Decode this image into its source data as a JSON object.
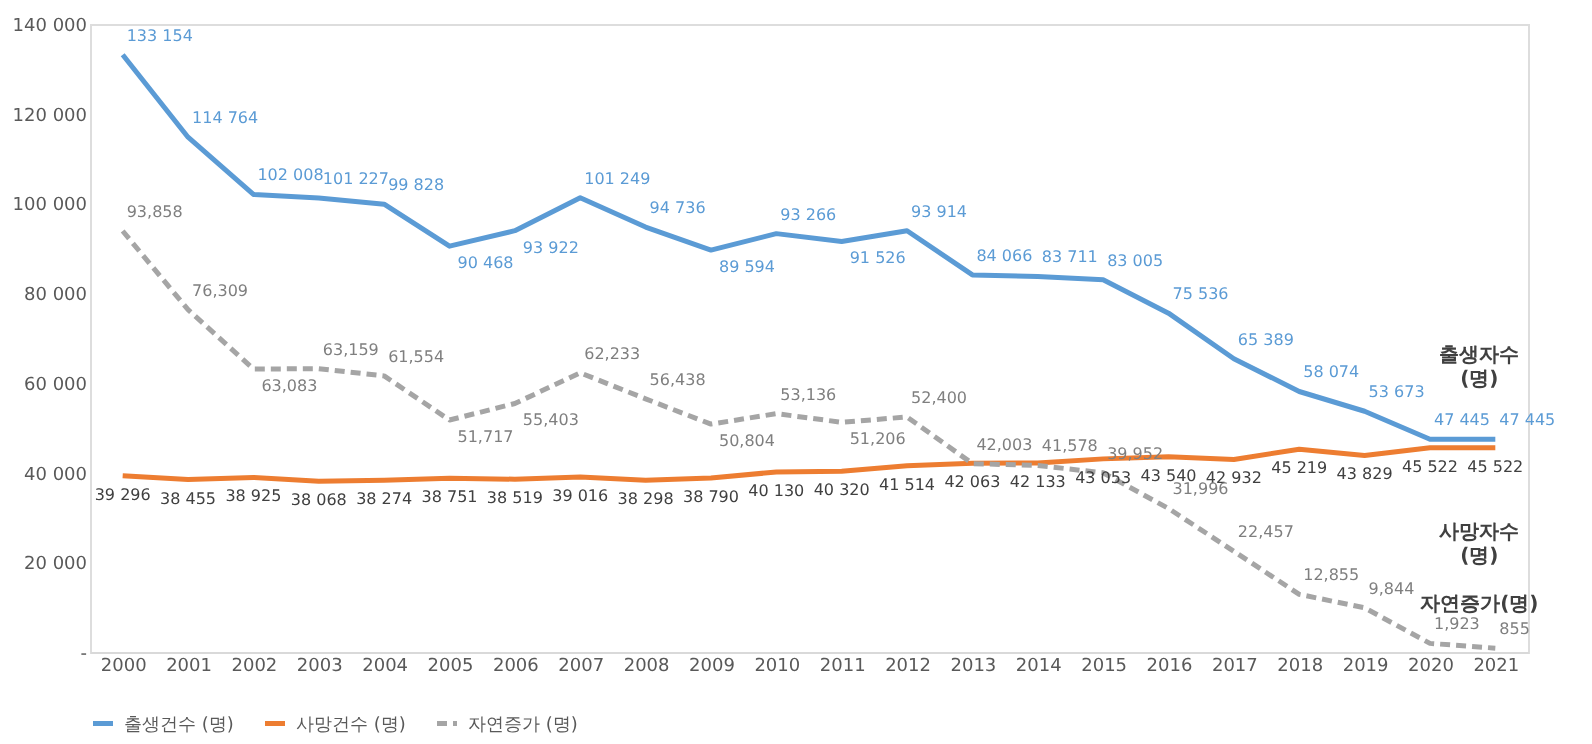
{
  "chart_data": {
    "type": "line",
    "categories": [
      "2000",
      "2001",
      "2002",
      "2003",
      "2004",
      "2005",
      "2006",
      "2007",
      "2008",
      "2009",
      "2010",
      "2011",
      "2012",
      "2013",
      "2014",
      "2015",
      "2016",
      "2017",
      "2018",
      "2019",
      "2020",
      "2021"
    ],
    "series": [
      {
        "name": "출생건수 (명)",
        "color": "#5b9bd5",
        "line_style": "solid",
        "values": [
          133154,
          114764,
          102008,
          101227,
          99828,
          90468,
          93922,
          101249,
          94736,
          89594,
          93266,
          91526,
          93914,
          84066,
          83711,
          83005,
          75536,
          65389,
          58074,
          53673,
          47445,
          47445
        ],
        "value_labels": [
          "133 154",
          "114 764",
          "102 008",
          "101 227",
          "99 828",
          "90 468",
          "93 922",
          "101 249",
          "94 736",
          "89 594",
          "93 266",
          "91 526",
          "93 914",
          "84 066",
          "83 711",
          "83 005",
          "75 536",
          "65 389",
          "58 074",
          "53 673",
          "47 445",
          "47 445"
        ]
      },
      {
        "name": "사망건수 (명)",
        "color": "#ed7d31",
        "line_style": "solid",
        "values": [
          39296,
          38455,
          38925,
          38068,
          38274,
          38751,
          38519,
          39016,
          38298,
          38790,
          40130,
          40320,
          41514,
          42063,
          42133,
          43053,
          43540,
          42932,
          45219,
          43829,
          45522,
          45522
        ],
        "value_labels": [
          "39 296",
          "38 455",
          "38 925",
          "38 068",
          "38 274",
          "38 751",
          "38 519",
          "39 016",
          "38 298",
          "38 790",
          "40 130",
          "40 320",
          "41 514",
          "42 063",
          "42 133",
          "43 053",
          "43 540",
          "42 932",
          "45 219",
          "43 829",
          "45 522",
          "45 522"
        ]
      },
      {
        "name": "자연증가 (명)",
        "color": "#a5a5a5",
        "line_style": "dashed",
        "values": [
          93858,
          76309,
          63083,
          63159,
          61554,
          51717,
          55403,
          62233,
          56438,
          50804,
          53136,
          51206,
          52400,
          42003,
          41578,
          39952,
          31996,
          22457,
          12855,
          9844,
          1923,
          855
        ],
        "value_labels": [
          "93,858",
          "76,309",
          "63,083",
          "63,159",
          "61,554",
          "51,717",
          "55,403",
          "62,233",
          "56,438",
          "50,804",
          "53,136",
          "51,206",
          "52,400",
          "42,003",
          "41,578",
          "39,952",
          "31,996",
          "22,457",
          "12,855",
          "9,844",
          "1,923",
          "855"
        ]
      }
    ],
    "annotations": [
      "출생자수\n(명)",
      "사망자수\n(명)",
      "자연증가(명)"
    ],
    "ylim": [
      0,
      140000
    ],
    "yticks": [
      {
        "value": 0,
        "label": "-"
      },
      {
        "value": 20000,
        "label": "20 000"
      },
      {
        "value": 40000,
        "label": "40 000"
      },
      {
        "value": 60000,
        "label": "60 000"
      },
      {
        "value": 80000,
        "label": "80 000"
      },
      {
        "value": 100000,
        "label": "100 000"
      },
      {
        "value": 120000,
        "label": "120 000"
      },
      {
        "value": 140000,
        "label": "140 000"
      }
    ],
    "grid": false,
    "legend": "bottom",
    "marker": "none"
  }
}
